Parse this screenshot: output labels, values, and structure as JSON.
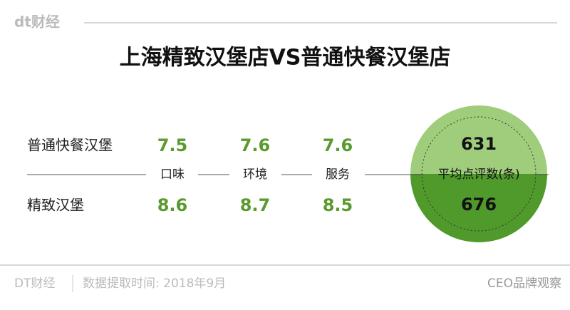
{
  "header": {
    "logo": "dt财经",
    "title": "上海精致汉堡店VS普通快餐汉堡店"
  },
  "table": {
    "columns": [
      "口味",
      "环境",
      "服务"
    ],
    "rows": [
      {
        "label": "普通快餐汉堡",
        "values": [
          7.5,
          7.6,
          7.6
        ]
      },
      {
        "label": "精致汉堡",
        "values": [
          8.6,
          8.7,
          8.5
        ]
      }
    ]
  },
  "reviews": {
    "label": "平均点评数(条)",
    "values": [
      631,
      676
    ]
  },
  "footer": {
    "source": "DT财经",
    "note": "数据提取时间: 2018年9月",
    "watermark": "CEO品牌观察"
  }
}
